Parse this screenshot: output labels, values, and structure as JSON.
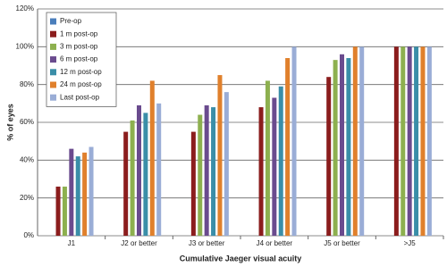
{
  "chart_data": {
    "type": "bar",
    "x_label": "Cumulative Jaeger visual acuity",
    "y_label": "% of eyes",
    "categories": [
      "J1",
      "J2 or better",
      "J3 or better",
      "J4 or better",
      "J5 or better",
      ">J5"
    ],
    "series": [
      {
        "name": "Pre-op",
        "color": "#4a7ebb",
        "values": [
          null,
          null,
          null,
          null,
          null,
          null
        ]
      },
      {
        "name": "1 m post-op",
        "color": "#8b1d1d",
        "values": [
          26,
          55,
          55,
          68,
          84,
          100
        ]
      },
      {
        "name": "3 m post-op",
        "color": "#8db04f",
        "values": [
          26,
          61,
          64,
          82,
          93,
          100
        ]
      },
      {
        "name": "6 m post-op",
        "color": "#6a4b8e",
        "values": [
          46,
          69,
          69,
          73,
          96,
          100
        ]
      },
      {
        "name": "12 m post-op",
        "color": "#3a8ea8",
        "values": [
          42,
          65,
          68,
          79,
          94,
          100
        ]
      },
      {
        "name": "24 m post-op",
        "color": "#e0802c",
        "values": [
          44,
          82,
          85,
          94,
          100,
          100
        ]
      },
      {
        "name": "Last post-op",
        "color": "#9aadd6",
        "values": [
          47,
          70,
          76,
          100,
          100,
          100
        ]
      }
    ],
    "ylim": [
      0,
      120
    ],
    "yticks": [
      {
        "value": 0,
        "label": "0%"
      },
      {
        "value": 20,
        "label": "20%"
      },
      {
        "value": 40,
        "label": "40%"
      },
      {
        "value": 60,
        "label": "60%"
      },
      {
        "value": 80,
        "label": "80%"
      },
      {
        "value": 100,
        "label": "100%"
      },
      {
        "value": 120,
        "label": "120%"
      }
    ],
    "grid": true,
    "legend": "top-left"
  }
}
